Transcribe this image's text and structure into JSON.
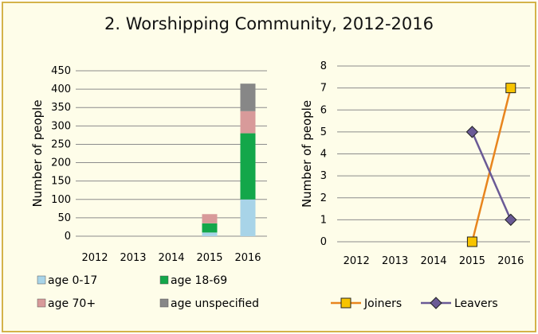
{
  "chart_title": "2. Worshipping Community, 2012-2016",
  "chart_data": [
    {
      "type": "bar",
      "stacked": true,
      "categories": [
        "2012",
        "2013",
        "2014",
        "2015",
        "2016"
      ],
      "series": [
        {
          "name": "age 0-17",
          "color": "#a8d4e8",
          "values": [
            0,
            0,
            0,
            10,
            100
          ]
        },
        {
          "name": "age 18-69",
          "color": "#13a74a",
          "values": [
            0,
            0,
            0,
            25,
            180
          ]
        },
        {
          "name": "age 70+",
          "color": "#d89a9a",
          "values": [
            0,
            0,
            0,
            25,
            60
          ]
        },
        {
          "name": "age unspecified",
          "color": "#878787",
          "values": [
            0,
            0,
            0,
            0,
            75
          ]
        }
      ],
      "ylabel": "Number of people",
      "ylim": [
        0,
        450
      ],
      "yticks": [
        "0",
        "50",
        "100",
        "150",
        "200",
        "250",
        "300",
        "350",
        "400",
        "450"
      ],
      "grid": true
    },
    {
      "type": "line",
      "categories": [
        "2012",
        "2013",
        "2014",
        "2015",
        "2016"
      ],
      "series": [
        {
          "name": "Joiners",
          "color": "#e8851e",
          "marker": "square",
          "marker_color": "#f7c400",
          "values": [
            null,
            null,
            null,
            0,
            7
          ]
        },
        {
          "name": "Leavers",
          "color": "#6a5a96",
          "marker": "diamond",
          "marker_color": "#6a5a96",
          "values": [
            null,
            null,
            null,
            5,
            1
          ]
        }
      ],
      "ylabel": "Number of people",
      "ylim": [
        0,
        8
      ],
      "yticks": [
        "0",
        "1",
        "2",
        "3",
        "4",
        "5",
        "6",
        "7",
        "8"
      ],
      "grid": true
    }
  ]
}
